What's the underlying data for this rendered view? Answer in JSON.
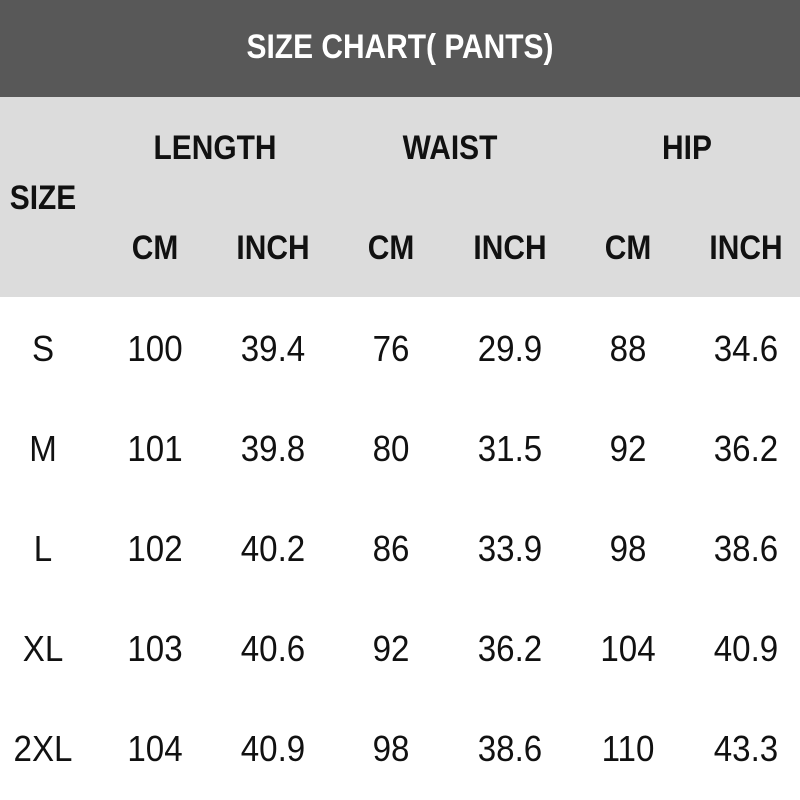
{
  "title": "SIZE CHART( PANTS)",
  "colors": {
    "title_bg": "#585858",
    "header_bg": "#dcdcdc",
    "text": "#111111"
  },
  "header": {
    "size": "SIZE",
    "groups": [
      "LENGTH",
      "WAIST",
      "HIP"
    ],
    "units": [
      "CM",
      "INCH",
      "CM",
      "INCH",
      "CM",
      "INCH"
    ]
  },
  "rows": [
    [
      "S",
      "100",
      "39.4",
      "76",
      "29.9",
      "88",
      "34.6"
    ],
    [
      "M",
      "101",
      "39.8",
      "80",
      "31.5",
      "92",
      "36.2"
    ],
    [
      "L",
      "102",
      "40.2",
      "86",
      "33.9",
      "98",
      "38.6"
    ],
    [
      "XL",
      "103",
      "40.6",
      "92",
      "36.2",
      "104",
      "40.9"
    ],
    [
      "2XL",
      "104",
      "40.9",
      "98",
      "38.6",
      "110",
      "43.3"
    ]
  ]
}
